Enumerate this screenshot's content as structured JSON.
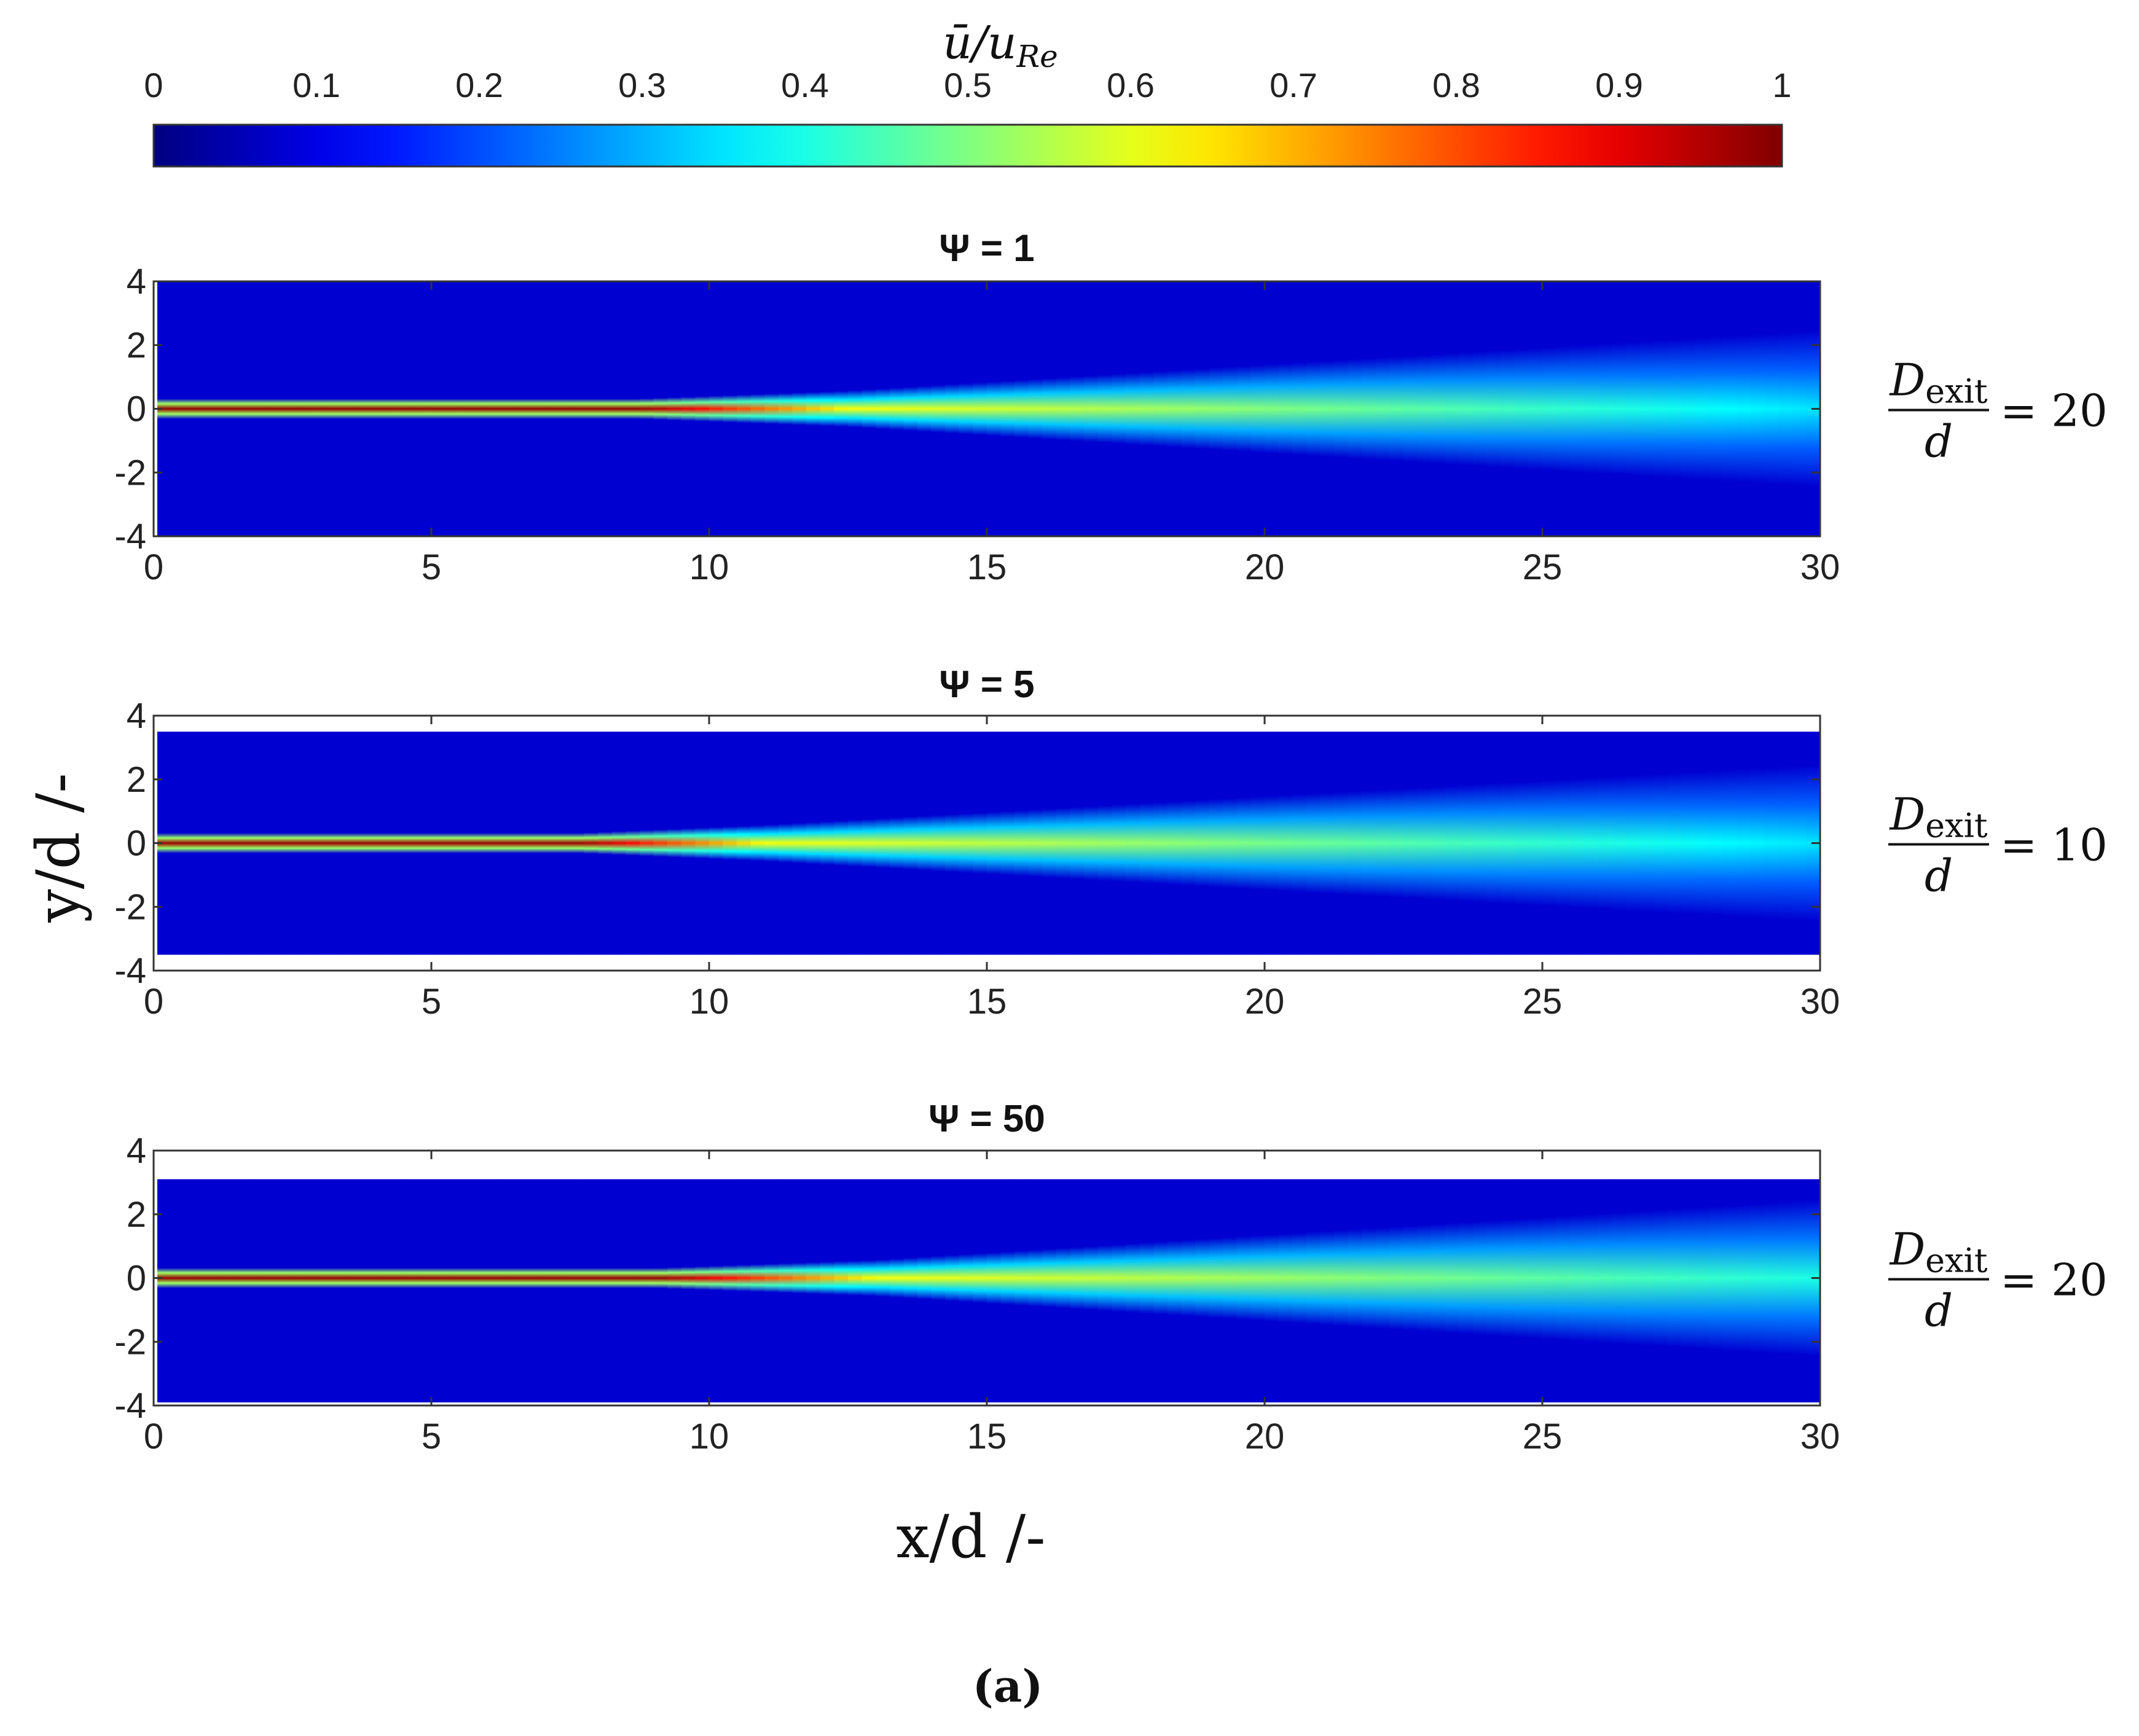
{
  "chart_data": {
    "type": "heatmap",
    "colormap": "jet",
    "colorbar": {
      "label_html": "ū/u<tspan font-style='italic'>Re</tspan>",
      "label": "ū/u_Re",
      "range": [
        0,
        1
      ],
      "ticks": [
        "0",
        "0.1",
        "0.2",
        "0.3",
        "0.4",
        "0.5",
        "0.6",
        "0.7",
        "0.8",
        "0.9",
        "1"
      ],
      "position": "top"
    },
    "xlabel": "x/d /-",
    "ylabel": "y/d /-",
    "xlim": [
      0,
      30
    ],
    "ylim": [
      -4,
      4
    ],
    "x_ticks": [
      "0",
      "5",
      "10",
      "15",
      "20",
      "25",
      "30"
    ],
    "y_ticks": [
      "4",
      "2",
      "0",
      "-2",
      "-4"
    ],
    "caption": "(a)",
    "panels": [
      {
        "title": "Ψ = 1",
        "annotation": {
          "numerator": "D",
          "subscript": "exit",
          "denominator": "d",
          "value": "= 20"
        },
        "field_extent_y": [
          -4,
          4
        ],
        "core_length": 12.5,
        "core_value": 0.98,
        "far_centerline_value": 0.35,
        "field_shape": "rectangular, window joins at x = 2.5, 7.5, 12.5, 17.5, 22.5, 27.5"
      },
      {
        "title": "Ψ = 5",
        "annotation": {
          "numerator": "D",
          "subscript": "exit",
          "denominator": "d",
          "value": "= 10"
        },
        "field_extent_y": [
          -3.5,
          3.5
        ],
        "core_length": 11,
        "core_value": 0.97,
        "far_centerline_value": 0.35,
        "field_shape": "six circular windows centred at x = 2.5, 7.5, 12.5, 17.5, 22.5, 27.5"
      },
      {
        "title": "Ψ = 50",
        "annotation": {
          "numerator": "D",
          "subscript": "exit",
          "denominator": "d",
          "value": "= 20"
        },
        "field_extent_y": [
          -3.9,
          3.1
        ],
        "core_length": 13,
        "core_value": 0.98,
        "far_centerline_value": 0.4,
        "field_shape": "rectangular"
      }
    ]
  },
  "colors": {
    "background_field": "#00008f",
    "core": "#8b0000",
    "axis": "#333333"
  }
}
